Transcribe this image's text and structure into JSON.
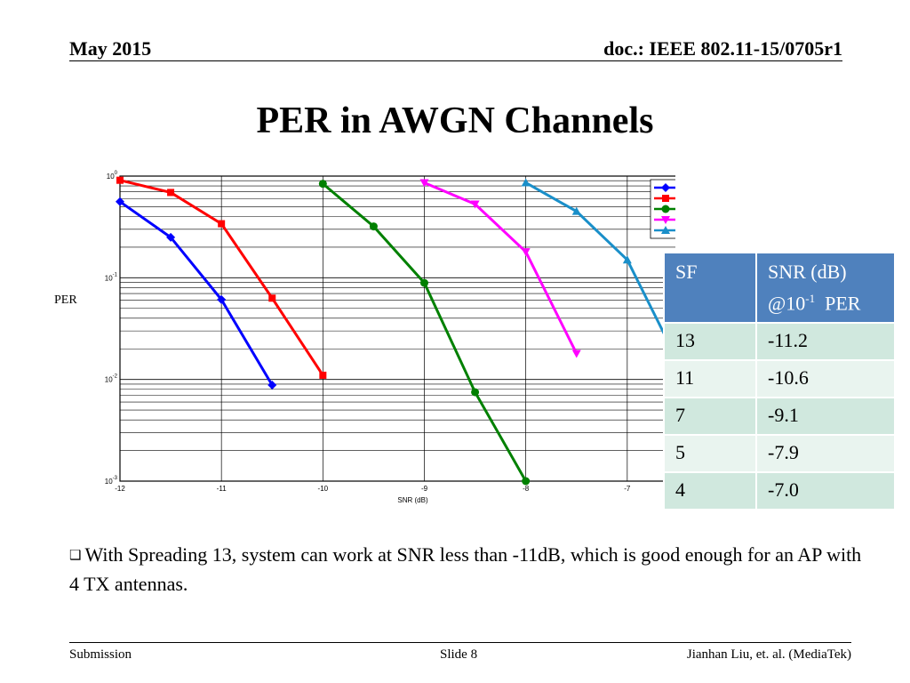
{
  "header": {
    "date": "May 2015",
    "doc": "doc.: IEEE 802.11-15/0705r1"
  },
  "title": "PER in AWGN Channels",
  "chart_data": {
    "type": "line",
    "xlabel": "SNR (dB)",
    "ylabel": "PER",
    "xlim": [
      -12,
      -6
    ],
    "ylim": [
      0.001,
      1
    ],
    "yscale": "log",
    "grid": true,
    "legend_position": "top-right",
    "x_ticks": [
      "-12",
      "-11",
      "-10",
      "-9",
      "-8",
      "-7",
      "-6"
    ],
    "y_ticks": [
      {
        "base": "10",
        "exp": "0"
      },
      {
        "base": "10",
        "exp": "-1"
      },
      {
        "base": "10",
        "exp": "-2"
      },
      {
        "base": "10",
        "exp": "-3"
      }
    ],
    "series": [
      {
        "name": "SF13 AWGN",
        "color": "#0000ff",
        "marker": "diamond",
        "x": [
          -12,
          -11.5,
          -11,
          -10.5
        ],
        "y": [
          0.56,
          0.25,
          0.061,
          0.0088
        ]
      },
      {
        "name": "SF11 AWGN",
        "color": "#ff0000",
        "marker": "square",
        "x": [
          -12,
          -11.5,
          -11,
          -10.5,
          -10
        ],
        "y": [
          0.91,
          0.69,
          0.34,
          0.063,
          0.011
        ]
      },
      {
        "name": "SF7 AWGN",
        "color": "#008000",
        "marker": "circle",
        "x": [
          -10,
          -9.5,
          -9,
          -8.5,
          -8
        ],
        "y": [
          0.84,
          0.32,
          0.089,
          0.0075,
          0.001
        ]
      },
      {
        "name": "SF5 AWGN",
        "color": "#ff00ff",
        "marker": "triangle-down",
        "x": [
          -9,
          -8.5,
          -8,
          -7.5
        ],
        "y": [
          0.86,
          0.53,
          0.18,
          0.018
        ]
      },
      {
        "name": "SF4 AWGN",
        "color": "#1a8fc9",
        "marker": "triangle-up",
        "x": [
          -8,
          -7.5,
          -7,
          -6.5,
          -6
        ],
        "y": [
          0.86,
          0.45,
          0.15,
          0.015,
          0.001
        ]
      }
    ]
  },
  "table": {
    "header": {
      "col1": "SF",
      "col2_line1": "SNR (dB)",
      "col2_pre": "@10",
      "col2_sup": "-1",
      "col2_post": "  PER"
    },
    "rows": [
      {
        "sf": "13",
        "snr": "-11.2"
      },
      {
        "sf": "11",
        "snr": "-10.6"
      },
      {
        "sf": "7",
        "snr": "-9.1"
      },
      {
        "sf": "5",
        "snr": "-7.9"
      },
      {
        "sf": "4",
        "snr": "-7.0"
      }
    ]
  },
  "bullet": "With Spreading 13, system can work at SNR less than -11dB, which is good enough for an AP with 4 TX antennas.",
  "footer": {
    "left": "Submission",
    "center": "Slide 8",
    "right": "Jianhan Liu, et. al. (MediaTek)"
  }
}
